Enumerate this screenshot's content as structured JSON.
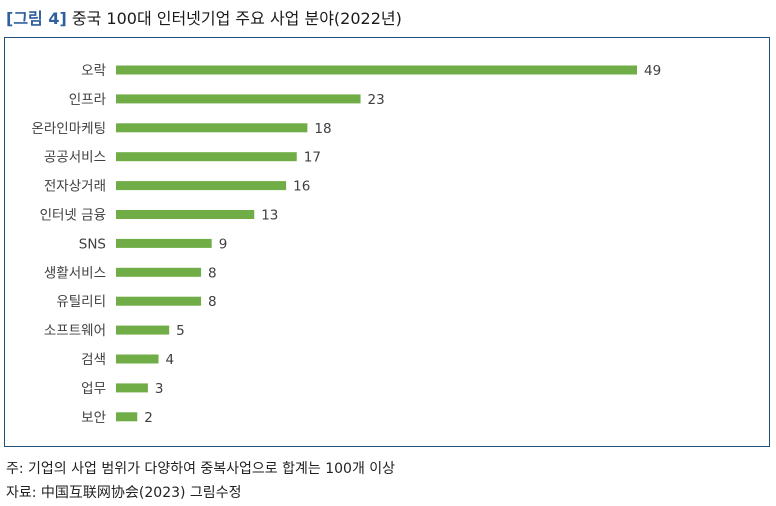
{
  "figure": {
    "tag": "[그림 4]",
    "title": "중국 100대 인터넷기업 주요 사업 분야(2022년)"
  },
  "notes": {
    "note": "주: 기업의 사업 범위가 다양하여 중복사업으로 합계는 100개 이상",
    "source": "자료: 中国互联网协会(2023) 그림수정"
  },
  "colors": {
    "bar": "#70ad47",
    "frame": "#1f4e79",
    "tag": "#2f5f9e"
  },
  "chart_data": {
    "type": "bar",
    "orientation": "horizontal",
    "categories": [
      "오락",
      "인프라",
      "온라인마케팅",
      "공공서비스",
      "전자상거래",
      "인터넷 금융",
      "SNS",
      "생활서비스",
      "유틸리티",
      "소프트웨어",
      "검색",
      "업무",
      "보안"
    ],
    "values": [
      49,
      23,
      18,
      17,
      16,
      13,
      9,
      8,
      8,
      5,
      4,
      3,
      2
    ],
    "data_labels": [
      "49",
      "23",
      "18",
      "17",
      "16",
      "13",
      "9",
      "8",
      "8",
      "5",
      "4",
      "3",
      "2"
    ],
    "xlim": [
      0,
      49
    ],
    "grid": false,
    "legend": "none"
  }
}
